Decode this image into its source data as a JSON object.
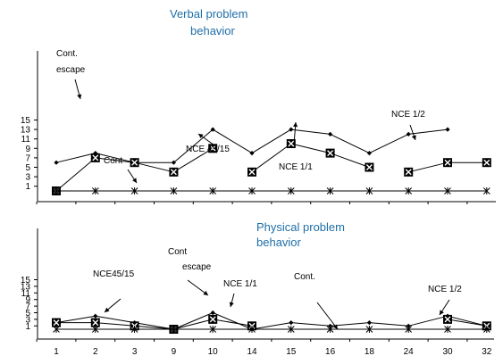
{
  "chart_data": [
    {
      "type": "line",
      "title": "Verbal problem behavior",
      "title_lines": [
        "Verbal problem",
        "behavior"
      ],
      "xlabel": "",
      "ylabel": "",
      "ylim": [
        0,
        15
      ],
      "yticks": [
        1,
        3,
        5,
        7,
        9,
        11,
        13,
        15
      ],
      "grid": false,
      "legend": "none",
      "series": [
        {
          "marker": "diamond",
          "x": [
            1,
            2,
            3,
            4,
            5,
            6,
            7,
            8,
            9,
            10,
            11,
            12
          ],
          "y": [
            6,
            8,
            6,
            6,
            13,
            8,
            13,
            12,
            8,
            12,
            13,
            null
          ]
        },
        {
          "marker": "boxed-x",
          "x": [
            1,
            2,
            3,
            4,
            5,
            6,
            7,
            8,
            9,
            10,
            11,
            12
          ],
          "y": [
            0,
            7,
            6,
            4,
            9,
            4,
            10,
            8,
            5,
            4,
            6,
            6
          ],
          "line_breaks_after": [
            5,
            9
          ]
        },
        {
          "marker": "asterisk",
          "x": [
            1,
            2,
            3,
            4,
            5,
            6,
            7,
            8,
            9,
            10,
            11,
            12
          ],
          "y": [
            0,
            0,
            0,
            0,
            0,
            0,
            0,
            0,
            0,
            0,
            0,
            0
          ]
        }
      ],
      "annotations": [
        {
          "text_lines": [
            "Cont.",
            "escape"
          ],
          "arrow": true
        },
        {
          "text_lines": [
            "Cont"
          ],
          "arrow": true
        },
        {
          "text_lines": [
            "NCE 45/15"
          ],
          "arrow": true
        },
        {
          "text_lines": [
            "NCE 1/1"
          ],
          "arrow": true
        },
        {
          "text_lines": [
            "NCE 1/2"
          ],
          "arrow": true
        }
      ]
    },
    {
      "type": "line",
      "title": "Physical problem behavior",
      "title_lines": [
        "Physical problem",
        "behavior"
      ],
      "xlabel": "",
      "ylabel": "",
      "categories": [
        "1",
        "2",
        "3",
        "9",
        "10",
        "14",
        "15",
        "16",
        "18",
        "24",
        "30",
        "32"
      ],
      "ylim": [
        0,
        15
      ],
      "yticks": [
        1,
        3,
        5,
        7,
        9,
        11,
        13,
        15
      ],
      "grid": false,
      "legend": "none",
      "series": [
        {
          "marker": "diamond",
          "x": [
            1,
            2,
            3,
            4,
            5,
            6,
            7,
            8,
            9,
            10,
            11,
            12
          ],
          "y": [
            2,
            4,
            2,
            0,
            5,
            0,
            2,
            1,
            2,
            1,
            4,
            1
          ]
        },
        {
          "marker": "boxed-x",
          "x": [
            1,
            2,
            3,
            4,
            5,
            6,
            7,
            8,
            9,
            10,
            11,
            12
          ],
          "y": [
            2,
            2,
            1,
            0,
            3,
            1,
            null,
            null,
            null,
            null,
            3,
            1
          ]
        },
        {
          "marker": "asterisk",
          "x": [
            1,
            2,
            3,
            4,
            5,
            6,
            7,
            8,
            9,
            10,
            11,
            12
          ],
          "y": [
            0,
            0,
            0,
            0,
            0,
            0,
            0,
            0,
            0,
            0,
            0,
            0
          ]
        }
      ],
      "annotations": [
        {
          "text_lines": [
            "NCE45/15"
          ],
          "arrow": true
        },
        {
          "text_lines": [
            "Cont",
            "escape"
          ],
          "arrow": true
        },
        {
          "text_lines": [
            "NCE 1/1"
          ],
          "arrow": true
        },
        {
          "text_lines": [
            "Cont."
          ],
          "arrow": true
        },
        {
          "text_lines": [
            "NCE 1/2"
          ],
          "arrow": true
        }
      ]
    }
  ]
}
